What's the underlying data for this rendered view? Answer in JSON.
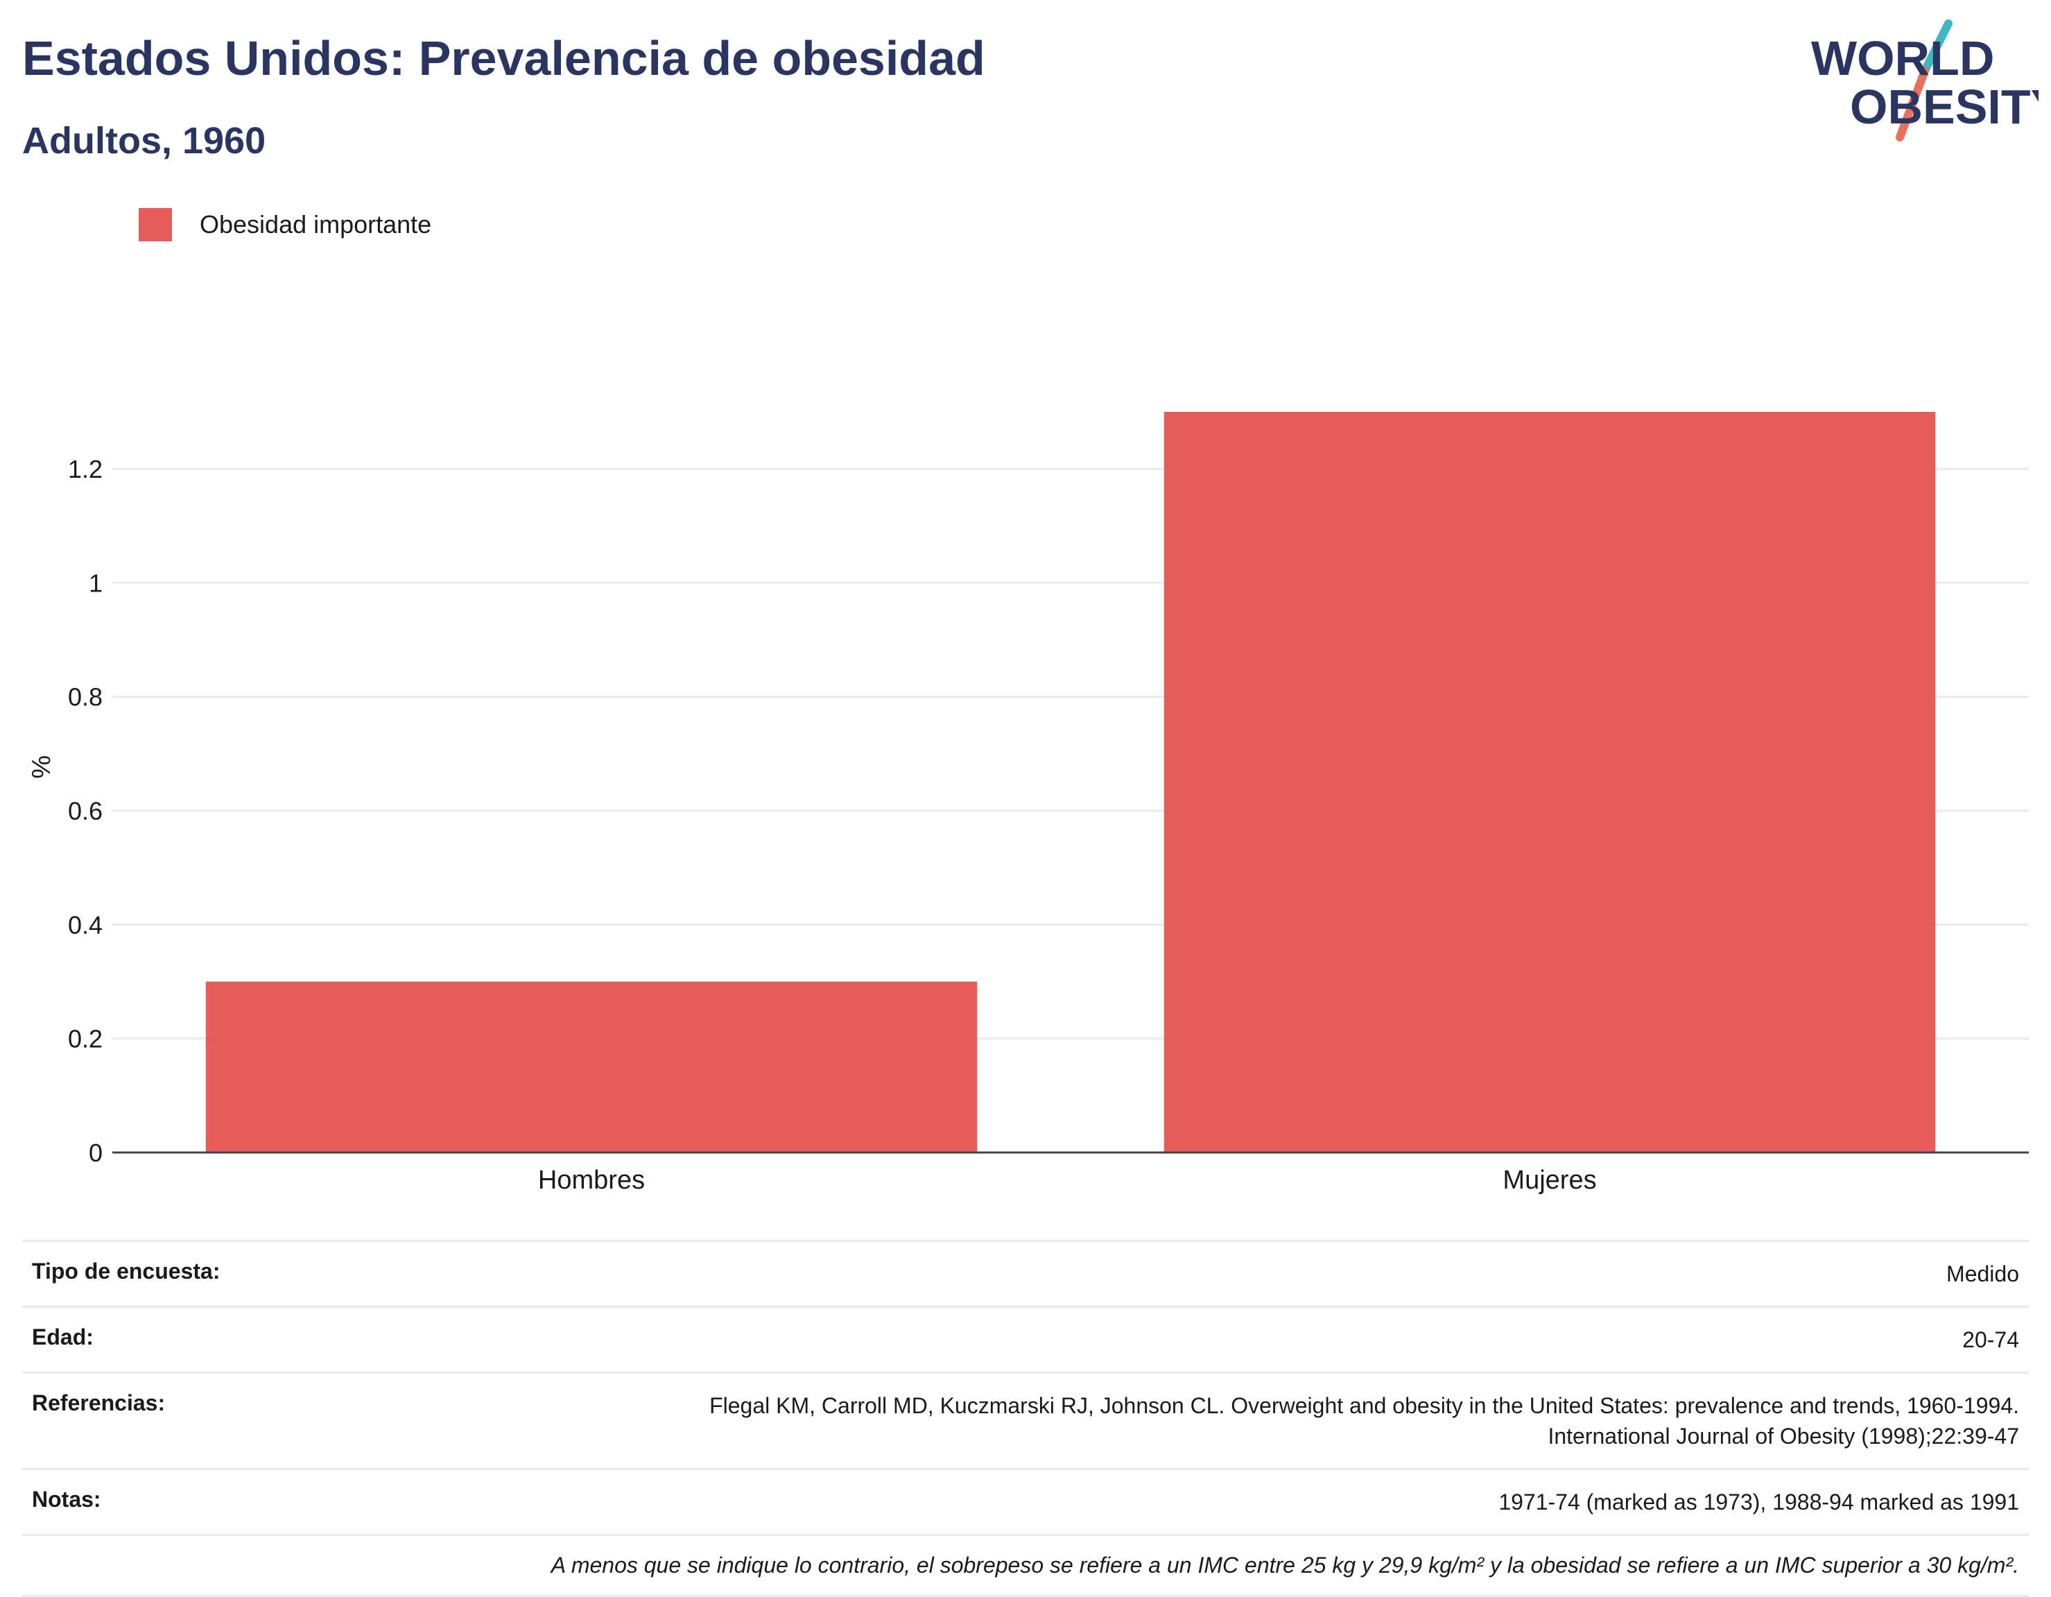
{
  "header": {
    "title": "Estados Unidos: Prevalencia de obesidad",
    "subtitle": "Adultos, 1960",
    "logo_line1": "WORLD",
    "logo_line2": "OBESITY"
  },
  "legend": {
    "label": "Obesidad importante"
  },
  "chart_data": {
    "type": "bar",
    "categories": [
      "Hombres",
      "Mujeres"
    ],
    "series": [
      {
        "name": "Obesidad importante",
        "values": [
          0.3,
          1.3
        ],
        "color": "#e95c5c"
      }
    ],
    "ylabel": "%",
    "ylim": [
      0,
      1.39
    ],
    "yticks": [
      0,
      0.2,
      0.4,
      0.6,
      0.8,
      1,
      1.2
    ],
    "yticklabels": [
      "0",
      "0.2",
      "0.4",
      "0.6",
      "0.8",
      "1",
      "1.2"
    ],
    "grid": true
  },
  "info": {
    "survey_label": "Tipo de encuesta:",
    "survey_value": "Medido",
    "age_label": "Edad:",
    "age_value": "20-74",
    "refs_label": "Referencias:",
    "refs_line1": "Flegal KM, Carroll MD, Kuczmarski RJ, Johnson CL. Overweight and obesity in the United States: prevalence and trends, 1960-1994.",
    "refs_line2": "International Journal of Obesity (1998);22:39-47",
    "notes_label": "Notas:",
    "notes_value": "1971-74 (marked as 1973), 1988-94 marked as 1991",
    "footnote": "A menos que se indique lo contrario, el sobrepeso se refiere a un IMC entre 25 kg y 29,9 kg/m² y la obesidad se refiere a un IMC superior a 30 kg/m²."
  },
  "colors": {
    "navy": "#2b3561",
    "bar": "#e95c5c",
    "teal": "#3bb8c0",
    "coral": "#e8705a"
  }
}
